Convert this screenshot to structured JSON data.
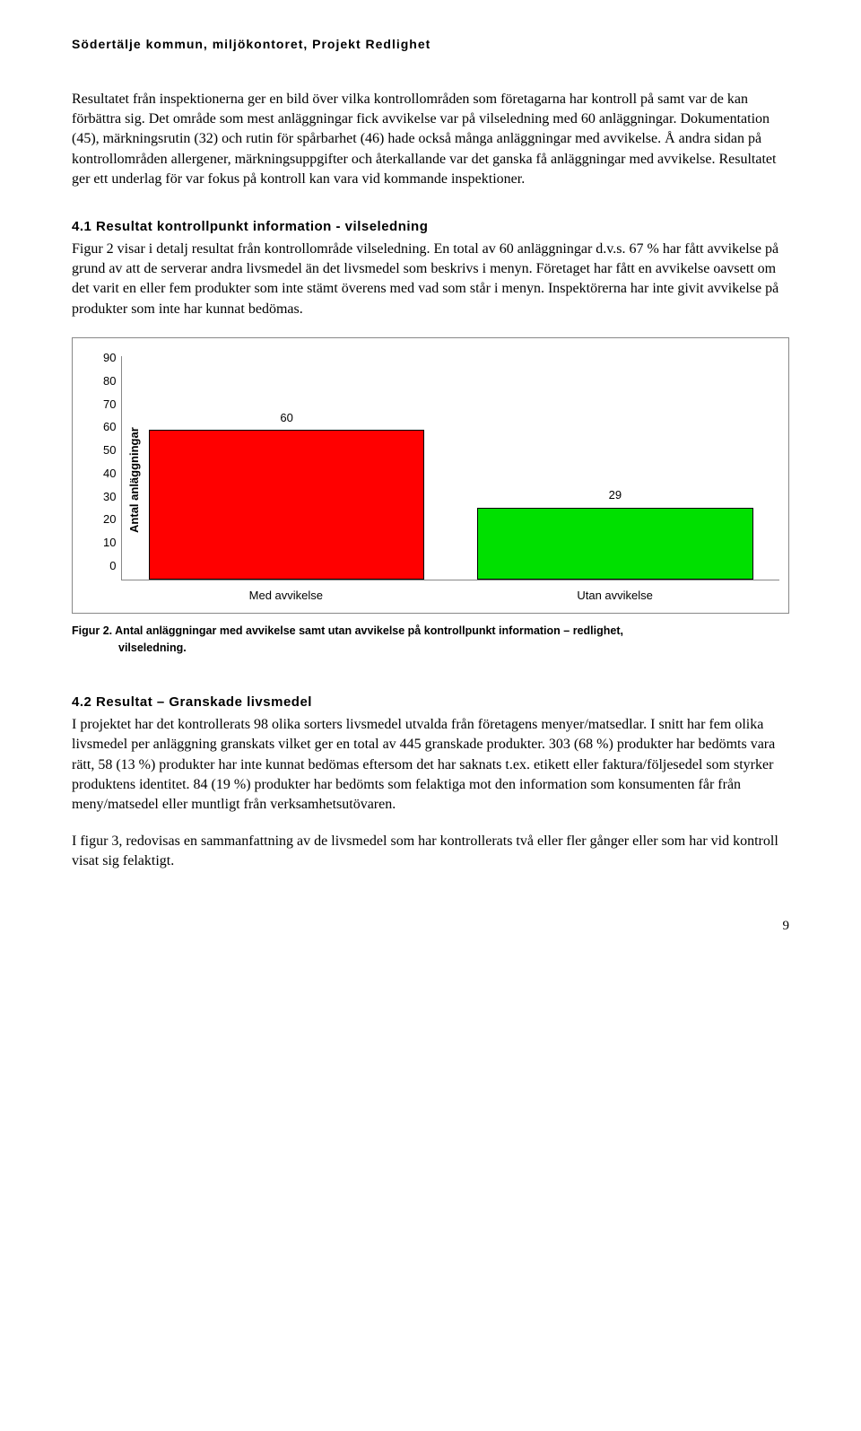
{
  "header": "Södertälje kommun, miljökontoret, Projekt Redlighet",
  "intro_para": "Resultatet från inspektionerna ger en bild över vilka kontrollområden som företagarna har kontroll på samt var de kan förbättra sig. Det område som mest anläggningar fick avvikelse var på vilseledning med 60 anläggningar. Dokumentation (45), märkningsrutin (32) och rutin för spårbarhet (46) hade också många anläggningar med avvikelse. Å andra sidan på kontrollområden allergener, märkningsuppgifter och återkallande var det ganska få anläggningar med avvikelse. Resultatet ger ett underlag för var fokus på kontroll kan vara vid kommande inspektioner.",
  "section41": {
    "title": "4.1 Resultat kontrollpunkt information - vilseledning",
    "body": "Figur 2 visar i detalj resultat från kontrollområde vilseledning. En total av 60 anläggningar d.v.s. 67 % har fått avvikelse på grund av att de serverar andra livsmedel än det livsmedel som beskrivs i menyn. Företaget har fått en avvikelse oavsett om det varit en eller fem produkter som inte stämt överens med vad som står i menyn. Inspektörerna har inte givit avvikelse på produkter som inte har kunnat bedömas."
  },
  "chart": {
    "type": "bar",
    "ylabel": "Antal anläggningar",
    "ylim": [
      0,
      90
    ],
    "ytick_step": 10,
    "yticks": [
      "90",
      "80",
      "70",
      "60",
      "50",
      "40",
      "30",
      "20",
      "10",
      "0"
    ],
    "categories": [
      "Med avvikelse",
      "Utan avvikelse"
    ],
    "values": [
      60,
      29
    ],
    "bar_colors": [
      "#ff0000",
      "#00e000"
    ],
    "value_fontsize": 13,
    "label_fontsize": 13,
    "background_color": "#ffffff",
    "border_color": "#888888"
  },
  "figure2_caption_line1": "Figur 2. Antal anläggningar med avvikelse samt utan avvikelse på kontrollpunkt information – redlighet,",
  "figure2_caption_line2": "vilseledning.",
  "section42": {
    "title": "4.2 Resultat – Granskade livsmedel",
    "body": "I projektet har det kontrollerats 98 olika sorters livsmedel utvalda från företagens menyer/matsedlar. I snitt har fem olika livsmedel per anläggning granskats vilket ger en total av 445 granskade produkter. 303 (68 %) produkter har bedömts vara rätt, 58 (13 %) produkter har inte kunnat bedömas eftersom det har saknats t.ex. etikett eller faktura/följesedel som styrker produktens identitet. 84 (19 %) produkter har bedömts som felaktiga mot den information som konsumenten får från meny/matsedel eller muntligt från verksamhetsutövaren."
  },
  "closing_para": "I figur 3, redovisas en sammanfattning av de livsmedel som har kontrollerats två eller fler gånger eller som har vid kontroll visat sig felaktigt.",
  "page_number": "9"
}
